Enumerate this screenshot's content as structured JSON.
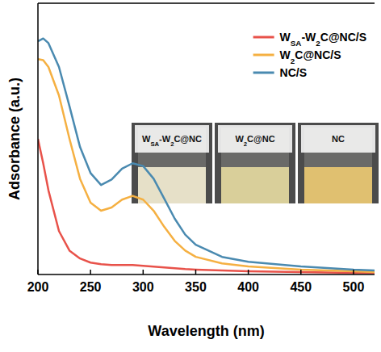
{
  "chart_data": {
    "type": "line",
    "x_label": "Wavelength (nm)",
    "y_label": "Adsorbance (a.u.)",
    "x": [
      200,
      205,
      210,
      220,
      230,
      240,
      250,
      260,
      270,
      280,
      290,
      300,
      310,
      320,
      330,
      340,
      350,
      375,
      400,
      450,
      500,
      520
    ],
    "series": [
      {
        "name": "WSA-W2C@NC/S",
        "color": "#e8524a",
        "values": [
          0.5,
          0.41,
          0.31,
          0.16,
          0.088,
          0.059,
          0.044,
          0.038,
          0.035,
          0.035,
          0.035,
          0.032,
          0.029,
          0.026,
          0.023,
          0.02,
          0.018,
          0.015,
          0.012,
          0.009,
          0.006,
          0.006
        ]
      },
      {
        "name": "W2C@NC/S",
        "color": "#f5b042",
        "values": [
          0.794,
          0.79,
          0.765,
          0.66,
          0.5,
          0.353,
          0.265,
          0.235,
          0.247,
          0.276,
          0.29,
          0.276,
          0.235,
          0.176,
          0.124,
          0.088,
          0.065,
          0.041,
          0.03,
          0.018,
          0.012,
          0.009
        ]
      },
      {
        "name": "NC/S",
        "color": "#4a8ab0",
        "values": [
          0.86,
          0.87,
          0.853,
          0.765,
          0.62,
          0.47,
          0.374,
          0.33,
          0.35,
          0.39,
          0.41,
          0.4,
          0.353,
          0.28,
          0.206,
          0.147,
          0.11,
          0.065,
          0.047,
          0.03,
          0.018,
          0.015
        ]
      }
    ],
    "xlim": [
      200,
      520
    ],
    "xticks": [
      200,
      250,
      300,
      350,
      400,
      450,
      500
    ],
    "ylim": [
      0,
      1
    ],
    "yticks": [],
    "tick_labels": "x",
    "grid": false,
    "legend": "upper right",
    "annotations": [
      "WSA-W2C@NC",
      "W2C@NC",
      "NC"
    ]
  }
}
